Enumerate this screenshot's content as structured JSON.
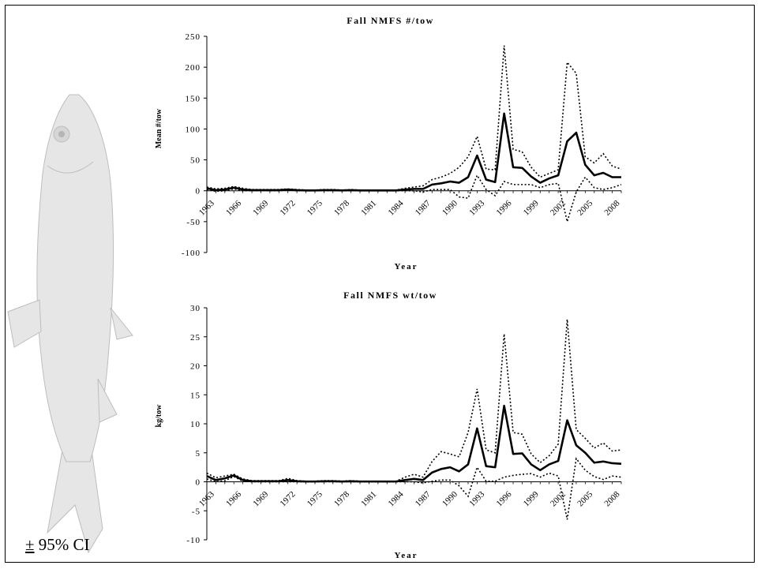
{
  "figure": {
    "ci_symbol": "±",
    "ci_text": " 95% CI",
    "fish_illustration": "fish-illustration"
  },
  "chart_data": [
    {
      "type": "line",
      "title": "Fall NMFS #/tow",
      "xlabel": "Year",
      "ylabel": "Mean #/tow",
      "ylim": [
        -100,
        250
      ],
      "yticks": [
        -100,
        -50,
        0,
        50,
        100,
        150,
        200,
        250
      ],
      "xlim": [
        1963,
        2009
      ],
      "xtick_labels": [
        "1963",
        "1966",
        "1969",
        "1972",
        "1975",
        "1978",
        "1981",
        "1984",
        "1987",
        "1990",
        "1993",
        "1996",
        "1999",
        "2002",
        "2005",
        "2008"
      ],
      "x": [
        1963,
        1964,
        1965,
        1966,
        1967,
        1968,
        1969,
        1970,
        1971,
        1972,
        1973,
        1974,
        1975,
        1976,
        1977,
        1978,
        1979,
        1980,
        1981,
        1982,
        1983,
        1984,
        1985,
        1986,
        1987,
        1988,
        1989,
        1990,
        1991,
        1992,
        1993,
        1994,
        1995,
        1996,
        1997,
        1998,
        1999,
        2000,
        2001,
        2002,
        2003,
        2004,
        2005,
        2006,
        2007,
        2008,
        2009
      ],
      "series": [
        {
          "style": "solid",
          "values": [
            4,
            1,
            2,
            5,
            2,
            1,
            1,
            1,
            1,
            2,
            1,
            0.5,
            0.5,
            1,
            1,
            0.5,
            1,
            0.5,
            0.5,
            0.5,
            0.5,
            0.5,
            2,
            3,
            3,
            10,
            12,
            15,
            13,
            22,
            57,
            18,
            14,
            125,
            38,
            37,
            23,
            13,
            20,
            25,
            80,
            94,
            42,
            25,
            29,
            22,
            22
          ]
        },
        {
          "style": "dotted",
          "values": [
            6,
            3,
            4,
            7,
            4,
            2,
            2,
            2,
            2,
            3,
            2,
            1,
            1,
            2,
            2,
            1,
            2,
            1,
            1,
            1,
            1,
            1,
            4,
            6,
            8,
            18,
            22,
            28,
            38,
            55,
            88,
            35,
            34,
            235,
            67,
            63,
            38,
            22,
            28,
            34,
            208,
            190,
            55,
            45,
            60,
            40,
            35
          ]
        },
        {
          "style": "dotted",
          "values": [
            2,
            -1,
            0,
            3,
            0,
            0,
            0,
            0,
            0,
            1,
            0,
            0,
            0,
            0,
            0,
            0,
            0,
            0,
            0,
            0,
            0,
            0,
            0,
            0,
            -2,
            2,
            2,
            2,
            -10,
            -12,
            25,
            2,
            -8,
            15,
            10,
            10,
            10,
            5,
            10,
            12,
            -50,
            -2,
            22,
            5,
            2,
            5,
            10
          ]
        }
      ]
    },
    {
      "type": "line",
      "title": "Fall NMFS wt/tow",
      "xlabel": "Year",
      "ylabel": "kg/tow",
      "ylim": [
        -10,
        30
      ],
      "yticks": [
        -10,
        -5,
        0,
        5,
        10,
        15,
        20,
        25,
        30
      ],
      "xlim": [
        1963,
        2009
      ],
      "xtick_labels": [
        "1963",
        "1966",
        "1969",
        "1972",
        "1975",
        "1978",
        "1981",
        "1984",
        "1987",
        "1990",
        "1993",
        "1996",
        "1999",
        "2002",
        "2005",
        "2008"
      ],
      "x": [
        1963,
        1964,
        1965,
        1966,
        1967,
        1968,
        1969,
        1970,
        1971,
        1972,
        1973,
        1974,
        1975,
        1976,
        1977,
        1978,
        1979,
        1980,
        1981,
        1982,
        1983,
        1984,
        1985,
        1986,
        1987,
        1988,
        1989,
        1990,
        1991,
        1992,
        1993,
        1994,
        1995,
        1996,
        1997,
        1998,
        1999,
        2000,
        2001,
        2002,
        2003,
        2004,
        2005,
        2006,
        2007,
        2008,
        2009
      ],
      "series": [
        {
          "style": "solid",
          "values": [
            1.0,
            0.3,
            0.6,
            1.1,
            0.3,
            0.1,
            0.1,
            0.1,
            0.1,
            0.3,
            0.1,
            0.05,
            0.05,
            0.1,
            0.1,
            0.05,
            0.1,
            0.05,
            0.05,
            0.05,
            0.05,
            0.05,
            0.3,
            0.5,
            0.3,
            1.6,
            2.2,
            2.5,
            1.8,
            3.0,
            9.2,
            2.7,
            2.5,
            13.1,
            4.8,
            4.9,
            3.0,
            2.0,
            3.0,
            3.6,
            10.6,
            6.3,
            5.0,
            3.3,
            3.5,
            3.2,
            3.1
          ]
        },
        {
          "style": "dotted",
          "values": [
            1.5,
            0.7,
            1.0,
            1.3,
            0.5,
            0.2,
            0.2,
            0.2,
            0.2,
            0.6,
            0.2,
            0.1,
            0.1,
            0.2,
            0.2,
            0.1,
            0.2,
            0.1,
            0.1,
            0.1,
            0.1,
            0.1,
            0.8,
            1.3,
            0.8,
            3.5,
            5.2,
            4.8,
            4.3,
            8.5,
            16.0,
            5.5,
            5.0,
            25.5,
            8.5,
            8.2,
            4.8,
            3.3,
            4.5,
            6.5,
            28.0,
            9.0,
            7.5,
            5.8,
            6.7,
            5.3,
            5.5
          ]
        },
        {
          "style": "dotted",
          "values": [
            0.5,
            0.0,
            0.2,
            0.9,
            0.1,
            0.0,
            0.0,
            0.0,
            0.0,
            0.0,
            0.0,
            0.0,
            0.0,
            0.0,
            0.0,
            0.0,
            0.0,
            0.0,
            0.0,
            0.0,
            0.0,
            0.0,
            0.0,
            0.0,
            -0.2,
            0.1,
            0.3,
            0.3,
            -0.7,
            -2.5,
            2.5,
            0.1,
            0.1,
            0.8,
            1.1,
            1.3,
            1.4,
            0.8,
            1.5,
            1.0,
            -6.5,
            4.0,
            2.0,
            0.9,
            0.4,
            1.0,
            0.8
          ]
        }
      ]
    }
  ]
}
